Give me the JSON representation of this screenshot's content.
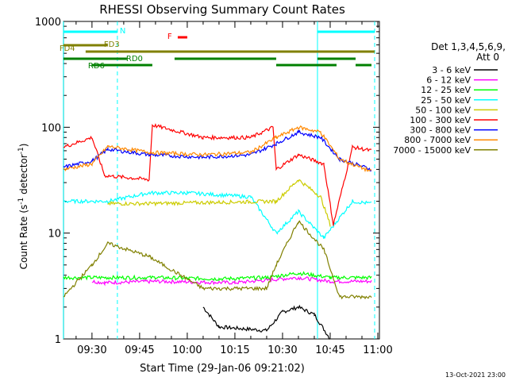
{
  "chart_data": {
    "type": "line",
    "title": "RHESSI Observing Summary Count Rates",
    "xlabel": "Start Time (29-Jan-06 09:21:02)",
    "ylabel": "Count Rate (s",
    "ylabel_sup": "-1",
    "ylabel_tail": " detector",
    "ylabel_sup2": "-1",
    "ylabel_end": ")",
    "y_scale": "log",
    "ylim": [
      1,
      1000
    ],
    "xlim": [
      "09:21:02",
      "11:00:30"
    ],
    "y_ticks": [
      {
        "value": 1,
        "label": "1"
      },
      {
        "value": 10,
        "label": "10"
      },
      {
        "value": 100,
        "label": "100"
      },
      {
        "value": 1000,
        "label": "1000"
      }
    ],
    "x_ticks": [
      "09:30",
      "09:45",
      "10:00",
      "10:15",
      "10:30",
      "10:45",
      "11:00"
    ],
    "legend_header": [
      "Det 1,3,4,5,6,9,",
      "Att 0"
    ],
    "legend_placement": "right",
    "footer_date": "13-Oct-2021 23:00",
    "series": [
      {
        "name": "3 - 6 keV",
        "color": "#000000",
        "points": [
          [
            "10:05",
            2
          ],
          [
            "10:10",
            1.3
          ],
          [
            "10:25",
            1.2
          ],
          [
            "10:30",
            1.8
          ],
          [
            "10:35",
            2.0
          ],
          [
            "10:40",
            1.7
          ],
          [
            "10:45",
            1.0
          ]
        ]
      },
      {
        "name": "6 - 12 keV",
        "color": "#ff00ff",
        "points": [
          [
            "09:30",
            3.5
          ],
          [
            "09:34",
            3.4
          ],
          [
            "09:50",
            3.5
          ],
          [
            "10:15",
            3.4
          ],
          [
            "10:25",
            3.6
          ],
          [
            "10:35",
            3.8
          ],
          [
            "10:45",
            3.5
          ],
          [
            "10:58",
            3.5
          ]
        ]
      },
      {
        "name": "12 - 25 keV",
        "color": "#00ff00",
        "points": [
          [
            "09:21",
            3.8
          ],
          [
            "09:35",
            3.8
          ],
          [
            "09:50",
            3.8
          ],
          [
            "10:10",
            3.7
          ],
          [
            "10:25",
            3.8
          ],
          [
            "10:35",
            4.2
          ],
          [
            "10:45",
            3.8
          ],
          [
            "10:58",
            3.8
          ]
        ]
      },
      {
        "name": "25 - 50 keV",
        "color": "#00ffff",
        "points": [
          [
            "09:21",
            20
          ],
          [
            "09:35",
            20
          ],
          [
            "09:48",
            24
          ],
          [
            "10:00",
            24
          ],
          [
            "10:20",
            22
          ],
          [
            "10:28",
            10
          ],
          [
            "10:35",
            16
          ],
          [
            "10:43",
            9
          ],
          [
            "10:52",
            20
          ],
          [
            "10:58",
            19
          ]
        ]
      },
      {
        "name": "50 - 100 keV",
        "color": "#cccc00",
        "points": [
          [
            "09:35",
            19
          ],
          [
            "09:48",
            19
          ],
          [
            "10:28",
            20
          ],
          [
            "10:35",
            32
          ],
          [
            "10:42",
            22
          ],
          [
            "10:45",
            12
          ]
        ]
      },
      {
        "name": "100 - 300 keV",
        "color": "#ff0000",
        "points": [
          [
            "09:21",
            65
          ],
          [
            "09:30",
            80
          ],
          [
            "09:34",
            35
          ],
          [
            "09:48",
            32
          ],
          [
            "09:49",
            105
          ],
          [
            "10:05",
            80
          ],
          [
            "10:20",
            80
          ],
          [
            "10:27",
            100
          ],
          [
            "10:28",
            40
          ],
          [
            "10:35",
            55
          ],
          [
            "10:43",
            45
          ],
          [
            "10:46",
            12
          ],
          [
            "10:52",
            65
          ],
          [
            "10:58",
            60
          ]
        ]
      },
      {
        "name": "300 - 800 keV",
        "color": "#0000ff",
        "points": [
          [
            "09:21",
            42
          ],
          [
            "09:30",
            48
          ],
          [
            "09:35",
            62
          ],
          [
            "09:48",
            55
          ],
          [
            "10:05",
            52
          ],
          [
            "10:20",
            55
          ],
          [
            "10:28",
            70
          ],
          [
            "10:35",
            90
          ],
          [
            "10:42",
            80
          ],
          [
            "10:48",
            50
          ],
          [
            "10:58",
            40
          ]
        ]
      },
      {
        "name": "800 - 7000 keV",
        "color": "#ff8800",
        "points": [
          [
            "09:21",
            40
          ],
          [
            "09:30",
            45
          ],
          [
            "09:35",
            66
          ],
          [
            "09:48",
            58
          ],
          [
            "10:05",
            55
          ],
          [
            "10:20",
            58
          ],
          [
            "10:28",
            80
          ],
          [
            "10:35",
            100
          ],
          [
            "10:42",
            90
          ],
          [
            "10:48",
            50
          ],
          [
            "10:58",
            38
          ]
        ]
      },
      {
        "name": "7000 - 15000 keV",
        "color": "#808000",
        "points": [
          [
            "09:21",
            2.5
          ],
          [
            "09:30",
            5
          ],
          [
            "09:35",
            8
          ],
          [
            "09:48",
            6
          ],
          [
            "10:05",
            3
          ],
          [
            "10:25",
            3
          ],
          [
            "10:28",
            5
          ],
          [
            "10:35",
            13
          ],
          [
            "10:43",
            7
          ],
          [
            "10:48",
            2.5
          ],
          [
            "10:58",
            2.5
          ]
        ]
      }
    ],
    "flags": [
      {
        "label": "N",
        "color": "#00ffff",
        "text_time": "09:40",
        "segments": [
          [
            "09:21",
            "09:38"
          ],
          [
            "10:41",
            "10:59"
          ]
        ]
      },
      {
        "label": "F",
        "color": "#ff0000",
        "text_time": "09:55",
        "segments": [
          [
            "09:57",
            "10:00"
          ]
        ]
      },
      {
        "label": "FD3",
        "color": "#808000",
        "text_time": "09:35",
        "segments": [
          [
            "09:21",
            "09:35"
          ]
        ]
      },
      {
        "label": "FD4",
        "color": "#808000",
        "text_time": "09:21",
        "segments": [
          [
            "09:28",
            "10:59"
          ]
        ]
      },
      {
        "label": "RD0",
        "color": "#008000",
        "text_time": "09:42",
        "segments": [
          [
            "09:21",
            "09:41"
          ],
          [
            "09:56",
            "10:28"
          ],
          [
            "10:41",
            "10:53"
          ]
        ]
      },
      {
        "label": "RD6",
        "color": "#008000",
        "text_time": "09:30",
        "segments": [
          [
            "09:30",
            "09:49"
          ],
          [
            "10:28",
            "10:47"
          ],
          [
            "10:53",
            "10:58"
          ]
        ]
      }
    ],
    "vlines": [
      {
        "time": "09:21",
        "color": "#00ffff",
        "style": "solid"
      },
      {
        "time": "09:38",
        "color": "#00ffff",
        "style": "dashed"
      },
      {
        "time": "10:41",
        "color": "#00ffff",
        "style": "solid"
      },
      {
        "time": "10:59",
        "color": "#00ffff",
        "style": "dashed"
      }
    ]
  }
}
